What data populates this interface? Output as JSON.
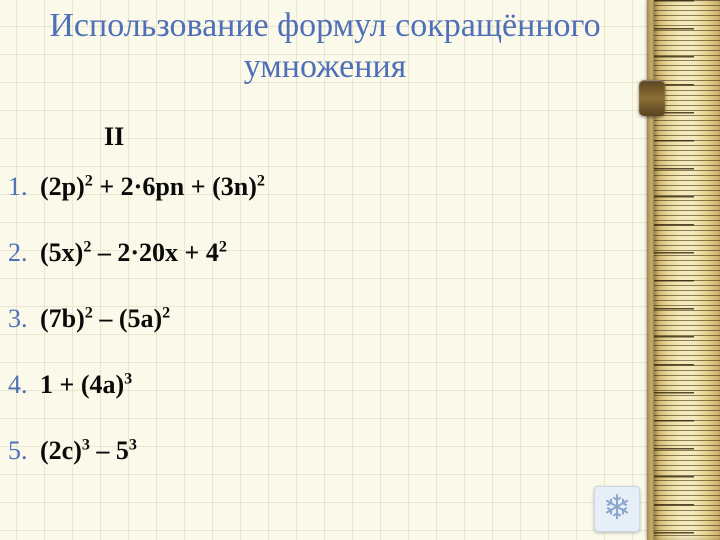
{
  "title_line1": "Использование формул сокращённого",
  "title_line2": "умножения",
  "column_label": "II",
  "items": [
    {
      "num": "1.",
      "base1": "(2p)",
      "p1": "2",
      "mid1": " + 2·6pn + ",
      "base2": "(3n)",
      "p2": "2",
      "tail": ""
    },
    {
      "num": "2.",
      "base1": "(5x)",
      "p1": "2",
      "mid1": " – 2·20x + ",
      "base2": "4",
      "p2": "2",
      "tail": ""
    },
    {
      "num": "3.",
      "base1": "(7b)",
      "p1": "2",
      "mid1": " – ",
      "base2": "(5a)",
      "p2": "2",
      "tail": ""
    },
    {
      "num": "4.",
      "base1": "1 + (4a)",
      "p1": "3",
      "mid1": "",
      "base2": "",
      "p2": "",
      "tail": ""
    },
    {
      "num": "5.",
      "base1": "(2c)",
      "p1": "3",
      "mid1": " – ",
      "base2": "5",
      "p2": "3",
      "tail": ""
    }
  ],
  "colors": {
    "title": "#4f6fb8",
    "number": "#4f6fb8",
    "text": "#0a0a0a",
    "bg": "#fbf9e9",
    "grid": "rgba(200,195,165,0.35)"
  },
  "icon": {
    "name": "snowflake-icon",
    "glyph": "❄"
  }
}
